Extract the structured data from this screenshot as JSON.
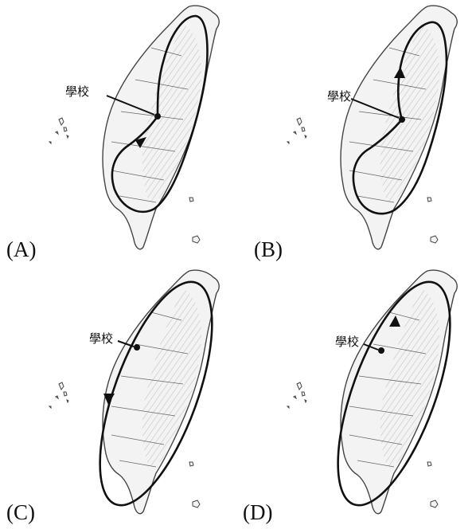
{
  "school_label": "學校",
  "options": [
    {
      "id": "A",
      "label": "(A)",
      "direction": "clockwise",
      "arrow": "down"
    },
    {
      "id": "B",
      "label": "(B)",
      "direction": "counterclockwise",
      "arrow": "up"
    },
    {
      "id": "C",
      "label": "(C)",
      "direction": "counterclockwise",
      "arrow": "down"
    },
    {
      "id": "D",
      "label": "(D)",
      "direction": "clockwise",
      "arrow": "up"
    }
  ],
  "colors": {
    "route": "#111111",
    "relief": "#b9b9b9",
    "land": "#f3f3f3",
    "outline": "#444444"
  }
}
